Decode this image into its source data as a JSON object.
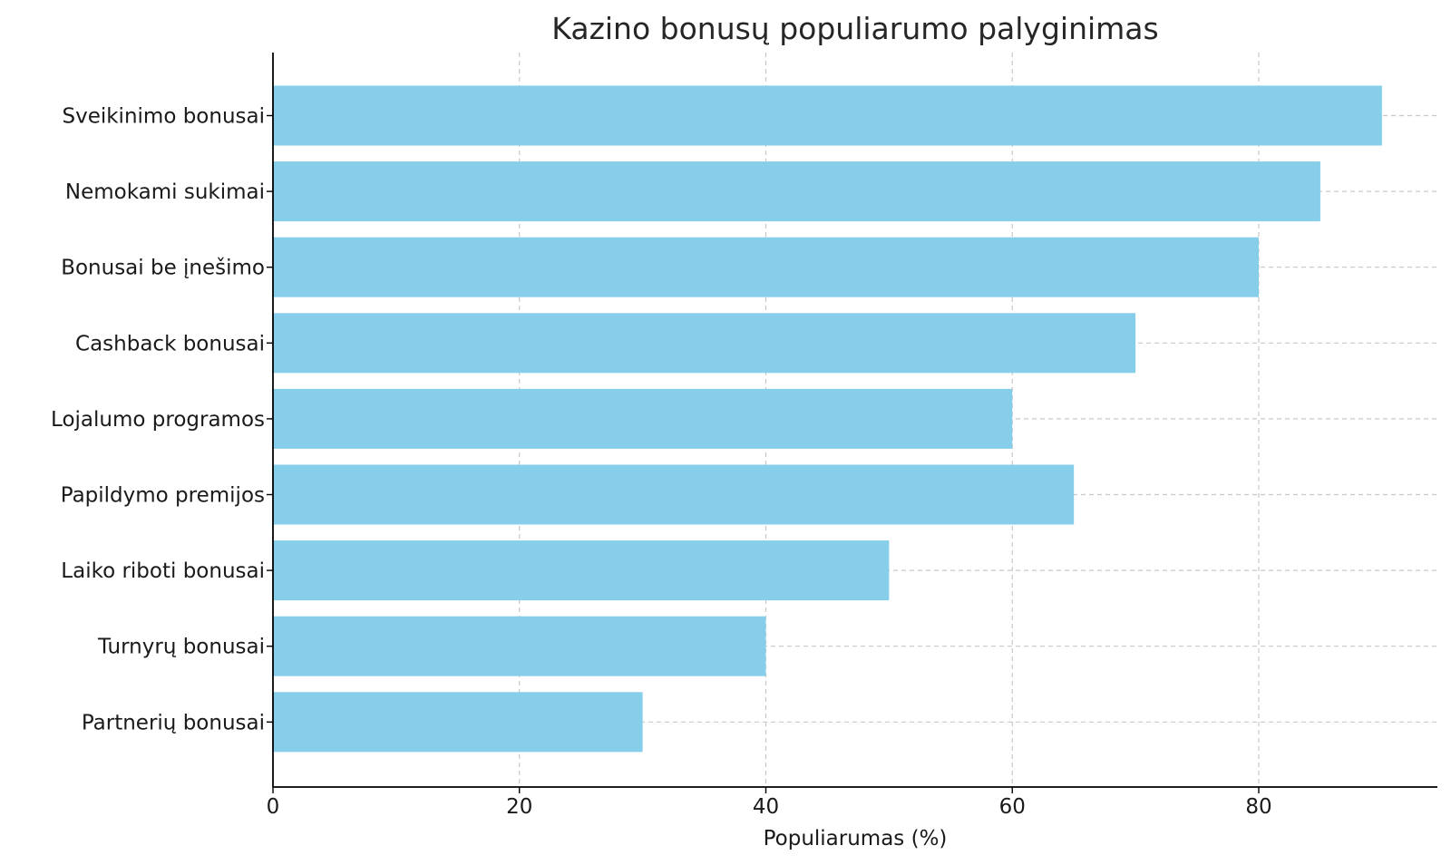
{
  "chart_data": {
    "type": "bar",
    "orientation": "horizontal",
    "title": "Kazino bonusų populiarumo palyginimas",
    "xlabel": "Populiarumas (%)",
    "ylabel": "",
    "categories": [
      "Sveikinimo bonusai",
      "Nemokami sukimai",
      "Bonusai be įnešimo",
      "Cashback bonusai",
      "Lojalumo programos",
      "Papildymo premijos",
      "Laiko riboti bonusai",
      "Turnyrų bonusai",
      "Partnerių bonusai"
    ],
    "values": [
      90,
      85,
      80,
      70,
      60,
      65,
      50,
      40,
      30
    ],
    "xlim": [
      0,
      94.5
    ],
    "xticks": [
      0,
      20,
      40,
      60,
      80
    ],
    "grid": true,
    "legend": "none",
    "bar_color": "#87ceeb"
  }
}
